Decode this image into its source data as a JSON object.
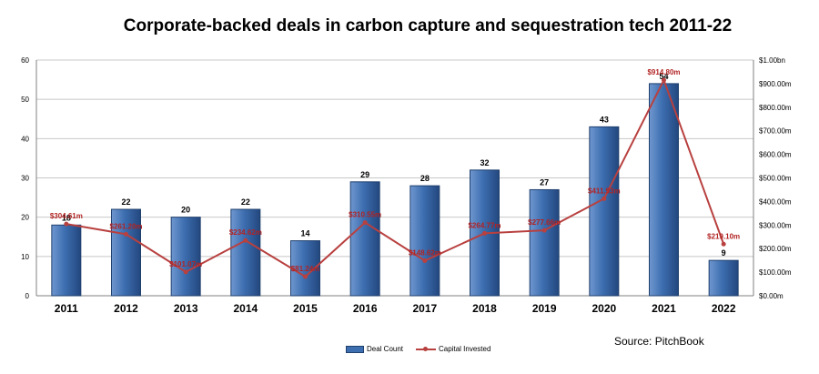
{
  "title": "Corporate-backed deals in carbon capture and sequestration tech 2011-22",
  "source": "Source: PitchBook",
  "legend": {
    "bar_label": "Deal Count",
    "line_label": "Capital Invested"
  },
  "colors": {
    "bar": "#3d6eb0",
    "bar_edge": "#20406e",
    "line": "#b8403f",
    "line_label": "#b22222",
    "grid": "#c8c8c8"
  },
  "chart_data": {
    "type": "bar",
    "categories": [
      "2011",
      "2012",
      "2013",
      "2014",
      "2015",
      "2016",
      "2017",
      "2018",
      "2019",
      "2020",
      "2021",
      "2022"
    ],
    "series": [
      {
        "name": "Deal Count",
        "type": "bar",
        "axis": "left",
        "values": [
          18,
          22,
          20,
          22,
          14,
          29,
          28,
          32,
          27,
          43,
          54,
          9
        ]
      },
      {
        "name": "Capital Invested",
        "type": "line",
        "axis": "right",
        "values": [
          304.61,
          261.2,
          101.07,
          234.62,
          81.24,
          310.55,
          148.62,
          264.77,
          277.66,
          411.93,
          914.8,
          219.1
        ],
        "labels": [
          "$304.61m",
          "$261.20m",
          "$101.07m",
          "$234.62m",
          "$81.24m",
          "$310.55m",
          "$148.62m",
          "$264.77m",
          "$277.66m",
          "$411.93m",
          "$914.80m",
          "$219.10m"
        ]
      }
    ],
    "y_left": {
      "min": 0,
      "max": 60,
      "ticks": [
        "0",
        "10",
        "20",
        "30",
        "40",
        "50",
        "60"
      ]
    },
    "y_right": {
      "min": 0,
      "max": 1000,
      "ticks": [
        "$0.00m",
        "$100.00m",
        "$200.00m",
        "$300.00m",
        "$400.00m",
        "$500.00m",
        "$600.00m",
        "$700.00m",
        "$800.00m",
        "$900.00m",
        "$1.00bn"
      ]
    },
    "grid": true,
    "legend_position": "bottom"
  }
}
